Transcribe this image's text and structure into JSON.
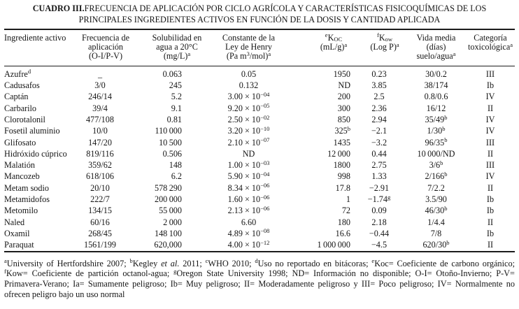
{
  "title": {
    "label": "CUADRO III.",
    "line1": "FRECUENCIA DE APLICACIÓN POR CICLO AGRÍCOLA Y CARACTERÍSTICAS FISICOQUÍMICAS DE LOS",
    "line2": "PRINCIPALES INGREDIENTES ACTIVOS EN FUNCIÓN DE LA DOSIS Y CANTIDAD APLICADA"
  },
  "table": {
    "headers": [
      {
        "id": "ingrediente",
        "lines": [
          "Ingrediente activo"
        ]
      },
      {
        "id": "frecuencia",
        "lines": [
          "Frecuencia de",
          "aplicación",
          "(O-I/P-V)"
        ]
      },
      {
        "id": "solubilidad",
        "lines": [
          "Solubilidad en",
          "agua a 20°C",
          "(mg/L)^{a}"
        ]
      },
      {
        "id": "henry",
        "lines": [
          "Constante de la",
          "Ley de Henry",
          "(Pa m^{3}/mol)^{a}"
        ]
      },
      {
        "id": "koc",
        "lines": [
          "^{e}K_{OC}",
          "(mL/g)^{a}"
        ]
      },
      {
        "id": "kow",
        "lines": [
          "^{f}K_{ow}",
          "(Log P)^{a}"
        ]
      },
      {
        "id": "vida-media",
        "lines": [
          "Vida media",
          "(días)",
          "suelo/agua^{a}"
        ]
      },
      {
        "id": "categoria",
        "lines": [
          "Categoría",
          "toxicológica^{a}"
        ]
      }
    ],
    "rows": [
      [
        "Azufre^{d}",
        "_",
        "0.063",
        "0.05",
        "1950",
        "0.23",
        "30/0.2",
        "III"
      ],
      [
        "Cadusafos",
        "3/0",
        "245",
        "0.132",
        "ND",
        "3.85",
        "38/174",
        "Ib"
      ],
      [
        "Captán",
        "246/14",
        "5.2",
        "3.00 × 10^{−04}",
        "200",
        "2.5",
        "0.8/0.6",
        "IV"
      ],
      [
        "Carbarilo",
        "39/4",
        "9.1",
        "9.20 × 10^{−05}",
        "300",
        "2.36",
        "16/12",
        "II"
      ],
      [
        "Clorotalonil",
        "477/108",
        "0.81",
        "2.50 × 10^{−02}",
        "850",
        "2.94",
        "35/49^{b}",
        "IV"
      ],
      [
        "Fosetil aluminio",
        "10/0",
        "110 000",
        "3.20 × 10^{−10}",
        "325^{b}",
        "−2.1",
        "1/30^{b}",
        "IV"
      ],
      [
        "Glifosato",
        "147/20",
        "10 500",
        "2.10 × 10^{−07}",
        "1435",
        "−3.2",
        "96/35^{b}",
        "III"
      ],
      [
        "Hidróxido cúprico",
        "819/116",
        "0.506",
        "ND",
        "12 000",
        "0.44",
        "10 000/ND",
        "II"
      ],
      [
        "Malatión",
        "359/62",
        "148",
        "1.00 × 10^{−03}",
        "1800",
        "2.75",
        "3/6^{b}",
        "III"
      ],
      [
        "Mancozeb",
        "618/106",
        "6.2",
        "5.90 × 10^{−04}",
        "998",
        "1.33",
        "2/166^{b}",
        "IV"
      ],
      [
        "Metam sodio",
        "20/10",
        "578 290",
        "8.34 × 10^{−06}",
        "17.8",
        "−2.91",
        "7/2.2",
        "II"
      ],
      [
        "Metamidofos",
        "222/7",
        "200 000",
        "1.60 × 10^{−06}",
        "1",
        "−1.74^{g}",
        "3.5/90",
        "Ib"
      ],
      [
        "Metomilo",
        "134/15",
        "55 000",
        "2.13 × 10^{−06}",
        "72",
        "0.09",
        "46/30^{b}",
        "Ib"
      ],
      [
        "Naled",
        "60/16",
        "2 000",
        "6.60",
        "180",
        "2.18",
        "1/4.4",
        "II"
      ],
      [
        "Oxamil",
        "268/45",
        "148 100",
        "4.89 × 10^{−08}",
        "16.6",
        "−0.44",
        "7/8",
        "Ib"
      ],
      [
        "Paraquat",
        "1561/199",
        "620,000",
        "4.00 × 10^{−12}",
        "1 000 000",
        "−4.5",
        "620/30^{b}",
        "II"
      ]
    ]
  },
  "footnote": {
    "parts": [
      {
        "sup": "a"
      },
      {
        "text": "University of Hertfordshire 2007; "
      },
      {
        "sup": "b"
      },
      {
        "text": "Kegley "
      },
      {
        "italic": "et al."
      },
      {
        "text": " 2011; "
      },
      {
        "sup": "c"
      },
      {
        "text": "WHO 2010; "
      },
      {
        "sup": "d"
      },
      {
        "text": "Uso no reportado en bitácoras; "
      },
      {
        "sup": "e"
      },
      {
        "text": "Koc= Coeficiente de carbono orgánico; "
      },
      {
        "sup": "f"
      },
      {
        "text": "Kow= Coeficiente de partición octanol-agua; "
      },
      {
        "sup": "g"
      },
      {
        "text": "Oregon State University 1998; ND= Información no disponible; O-I= Otoño-Invierno; P-V= Primavera-Verano; Ia= Sumamente peligroso; Ib= Muy peligroso; II= Moderadamente peligroso y III= Poco peligroso; IV= Normalmente no ofrecen peligro bajo un uso normal"
      }
    ]
  }
}
